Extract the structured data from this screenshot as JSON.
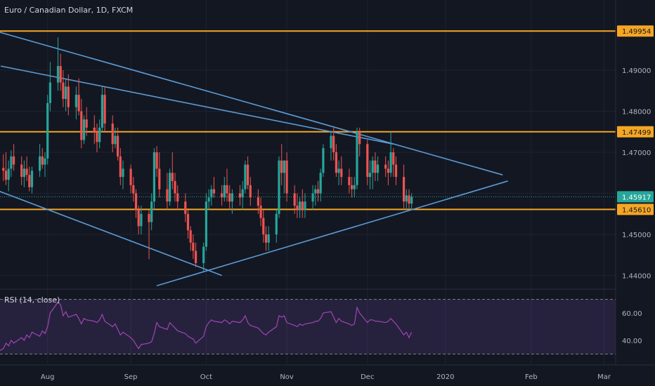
{
  "chart_data": {
    "type": "candlestick",
    "title": "Euro / Canadian Dollar, 1D, FXCM",
    "price_axis": {
      "ticks": [
        1.49,
        1.48,
        1.47,
        1.46,
        1.45,
        1.44
      ],
      "tick_labels": [
        "1.49000",
        "1.48000",
        "1.47000",
        "1.46000",
        "1.45000",
        "1.44000"
      ]
    },
    "time_axis": {
      "labels": [
        "Aug",
        "Sep",
        "Oct",
        "Nov",
        "Dec",
        "2020",
        "Feb",
        "Mar"
      ],
      "label_dates": [
        "2019-08-01",
        "2019-09-02",
        "2019-10-01",
        "2019-11-01",
        "2019-12-02",
        "2020-01-01",
        "2020-02-03",
        "2020-03-02"
      ]
    },
    "horizontal_levels": [
      {
        "price": 1.49954,
        "label": "1.49954"
      },
      {
        "price": 1.47499,
        "label": "1.47499"
      },
      {
        "price": 1.4561,
        "label": "1.45610"
      }
    ],
    "last_price": {
      "price": 1.45917,
      "label": "1.45917"
    },
    "trendlines": [
      {
        "from": {
          "date": "2019-07-01",
          "price": 1.5015
        },
        "to": {
          "date": "2020-01-23",
          "price": 1.4645
        }
      },
      {
        "from": {
          "date": "2019-07-14",
          "price": 1.491
        },
        "to": {
          "date": "2019-12-12",
          "price": 1.472
        }
      },
      {
        "from": {
          "date": "2019-07-01",
          "price": 1.4635
        },
        "to": {
          "date": "2019-10-07",
          "price": 1.44
        }
      },
      {
        "from": {
          "date": "2019-09-12",
          "price": 1.4375
        },
        "to": {
          "date": "2020-01-25",
          "price": 1.463
        }
      }
    ],
    "candles": [
      [
        1.4688,
        1.4715,
        1.464,
        1.4662
      ],
      [
        1.4662,
        1.4695,
        1.463,
        1.4655
      ],
      [
        1.4655,
        1.47,
        1.462,
        1.4633
      ],
      [
        1.4633,
        1.468,
        1.4605,
        1.466
      ],
      [
        1.466,
        1.4705,
        1.464,
        1.469
      ],
      [
        1.469,
        1.472,
        1.4655,
        1.467
      ],
      [
        1.467,
        1.469,
        1.462,
        1.464
      ],
      [
        1.464,
        1.468,
        1.4615,
        1.466
      ],
      [
        1.466,
        1.469,
        1.463,
        1.4645
      ],
      [
        1.4645,
        1.4665,
        1.4605,
        1.4615
      ],
      [
        1.4615,
        1.4665,
        1.46,
        1.4655
      ],
      [
        1.4655,
        1.472,
        1.464,
        1.469
      ],
      [
        1.469,
        1.471,
        1.466,
        1.467
      ],
      [
        1.467,
        1.47,
        1.464,
        1.4685
      ],
      [
        1.4685,
        1.484,
        1.467,
        1.482
      ],
      [
        1.482,
        1.492,
        1.48,
        1.487
      ],
      [
        1.487,
        1.498,
        1.485,
        1.491
      ],
      [
        1.491,
        1.494,
        1.485,
        1.487
      ],
      [
        1.487,
        1.49,
        1.481,
        1.483
      ],
      [
        1.483,
        1.488,
        1.48,
        1.486
      ],
      [
        1.486,
        1.489,
        1.479,
        1.481
      ],
      [
        1.481,
        1.486,
        1.478,
        1.484
      ],
      [
        1.484,
        1.488,
        1.479,
        1.48
      ],
      [
        1.48,
        1.483,
        1.471,
        1.473
      ],
      [
        1.473,
        1.479,
        1.472,
        1.478
      ],
      [
        1.478,
        1.481,
        1.474,
        1.476
      ],
      [
        1.476,
        1.479,
        1.472,
        1.475
      ],
      [
        1.475,
        1.477,
        1.47,
        1.4725
      ],
      [
        1.4725,
        1.478,
        1.471,
        1.476
      ],
      [
        1.476,
        1.486,
        1.475,
        1.484
      ],
      [
        1.484,
        1.486,
        1.475,
        1.477
      ],
      [
        1.477,
        1.479,
        1.47,
        1.472
      ],
      [
        1.472,
        1.476,
        1.471,
        1.474
      ],
      [
        1.474,
        1.476,
        1.468,
        1.469
      ],
      [
        1.469,
        1.471,
        1.462,
        1.464
      ],
      [
        1.464,
        1.468,
        1.461,
        1.466
      ],
      [
        1.466,
        1.467,
        1.46,
        1.462
      ],
      [
        1.462,
        1.464,
        1.458,
        1.46
      ],
      [
        1.46,
        1.461,
        1.454,
        1.456
      ],
      [
        1.456,
        1.457,
        1.45,
        1.452
      ],
      [
        1.452,
        1.457,
        1.45,
        1.455
      ],
      [
        1.455,
        1.456,
        1.444,
        1.453
      ],
      [
        1.453,
        1.46,
        1.451,
        1.458
      ],
      [
        1.458,
        1.471,
        1.456,
        1.47
      ],
      [
        1.47,
        1.4715,
        1.464,
        1.466
      ],
      [
        1.466,
        1.47,
        1.459,
        1.461
      ],
      [
        1.461,
        1.465,
        1.456,
        1.458
      ],
      [
        1.458,
        1.466,
        1.457,
        1.465
      ],
      [
        1.465,
        1.47,
        1.461,
        1.463
      ],
      [
        1.463,
        1.465,
        1.458,
        1.46
      ],
      [
        1.46,
        1.462,
        1.456,
        1.458
      ],
      [
        1.458,
        1.46,
        1.453,
        1.455
      ],
      [
        1.455,
        1.456,
        1.449,
        1.451
      ],
      [
        1.451,
        1.452,
        1.446,
        1.448
      ],
      [
        1.448,
        1.45,
        1.444,
        1.446
      ],
      [
        1.446,
        1.448,
        1.442,
        1.443
      ],
      [
        1.443,
        1.448,
        1.441,
        1.447
      ],
      [
        1.447,
        1.46,
        1.446,
        1.458
      ],
      [
        1.458,
        1.461,
        1.456,
        1.459
      ],
      [
        1.459,
        1.462,
        1.457,
        1.461
      ],
      [
        1.461,
        1.464,
        1.459,
        1.46
      ],
      [
        1.46,
        1.462,
        1.457,
        1.459
      ],
      [
        1.459,
        1.464,
        1.458,
        1.462
      ],
      [
        1.462,
        1.466,
        1.458,
        1.46
      ],
      [
        1.46,
        1.462,
        1.456,
        1.458
      ],
      [
        1.458,
        1.461,
        1.455,
        1.46
      ],
      [
        1.46,
        1.462,
        1.457,
        1.459
      ],
      [
        1.459,
        1.463,
        1.456,
        1.461
      ],
      [
        1.461,
        1.468,
        1.46,
        1.467
      ],
      [
        1.467,
        1.469,
        1.461,
        1.462
      ],
      [
        1.462,
        1.464,
        1.457,
        1.459
      ],
      [
        1.459,
        1.461,
        1.455,
        1.457
      ],
      [
        1.457,
        1.459,
        1.452,
        1.454
      ],
      [
        1.454,
        1.456,
        1.448,
        1.45
      ],
      [
        1.45,
        1.452,
        1.446,
        1.448
      ],
      [
        1.448,
        1.452,
        1.446,
        1.45
      ],
      [
        1.45,
        1.456,
        1.448,
        1.455
      ],
      [
        1.455,
        1.469,
        1.454,
        1.468
      ],
      [
        1.468,
        1.472,
        1.462,
        1.465
      ],
      [
        1.465,
        1.468,
        1.46,
        1.468
      ],
      [
        1.468,
        1.47,
        1.458,
        1.46
      ],
      [
        1.46,
        1.462,
        1.455,
        1.457
      ],
      [
        1.457,
        1.46,
        1.454,
        1.456
      ],
      [
        1.456,
        1.459,
        1.454,
        1.458
      ],
      [
        1.458,
        1.461,
        1.454,
        1.456
      ],
      [
        1.456,
        1.46,
        1.454,
        1.458
      ],
      [
        1.458,
        1.462,
        1.456,
        1.46
      ],
      [
        1.46,
        1.462,
        1.457,
        1.461
      ],
      [
        1.461,
        1.463,
        1.458,
        1.46
      ],
      [
        1.46,
        1.466,
        1.458,
        1.465
      ],
      [
        1.465,
        1.472,
        1.464,
        1.471
      ],
      [
        1.471,
        1.475,
        1.468,
        1.474
      ],
      [
        1.474,
        1.476,
        1.468,
        1.47
      ],
      [
        1.47,
        1.472,
        1.464,
        1.465
      ],
      [
        1.465,
        1.468,
        1.462,
        1.466
      ],
      [
        1.466,
        1.469,
        1.462,
        1.464
      ],
      [
        1.464,
        1.466,
        1.46,
        1.462
      ],
      [
        1.462,
        1.464,
        1.459,
        1.461
      ],
      [
        1.461,
        1.464,
        1.459,
        1.462
      ],
      [
        1.462,
        1.476,
        1.461,
        1.475
      ],
      [
        1.475,
        1.476,
        1.469,
        1.472
      ],
      [
        1.472,
        1.473,
        1.462,
        1.464
      ],
      [
        1.464,
        1.468,
        1.461,
        1.465
      ],
      [
        1.465,
        1.469,
        1.461,
        1.468
      ],
      [
        1.468,
        1.47,
        1.463,
        1.465
      ],
      [
        1.465,
        1.469,
        1.463,
        1.467
      ],
      [
        1.467,
        1.469,
        1.464,
        1.466
      ],
      [
        1.466,
        1.468,
        1.462,
        1.465
      ],
      [
        1.465,
        1.475,
        1.464,
        1.47
      ],
      [
        1.47,
        1.471,
        1.464,
        1.467
      ],
      [
        1.467,
        1.469,
        1.462,
        1.464
      ],
      [
        1.464,
        1.467,
        1.456,
        1.458
      ],
      [
        1.458,
        1.461,
        1.456,
        1.4595
      ],
      [
        1.4595,
        1.461,
        1.456,
        1.4575
      ],
      [
        1.4575,
        1.46,
        1.456,
        1.4592
      ]
    ],
    "rsi": {
      "label": "RSI (14, close)",
      "ticks": [
        60.0,
        40.0
      ],
      "tick_labels": [
        "60.00",
        "40.00"
      ],
      "bands": [
        70,
        30
      ],
      "values": [
        31,
        34,
        38,
        36,
        40,
        38,
        42,
        40,
        44,
        42,
        46,
        43,
        47,
        45,
        50,
        60,
        68,
        66,
        58,
        61,
        57,
        59,
        56,
        52,
        56,
        55,
        54,
        53,
        55,
        59,
        54,
        50,
        52,
        48,
        44,
        46,
        42,
        40,
        37,
        34,
        37,
        38,
        39,
        45,
        53,
        50,
        48,
        53,
        51,
        49,
        47,
        45,
        43,
        42,
        41,
        38,
        43,
        50,
        53,
        55,
        54,
        53,
        55,
        54,
        52,
        54,
        53,
        55,
        58,
        53,
        51,
        49,
        47,
        45,
        44,
        46,
        50,
        58,
        57,
        58,
        53,
        51,
        50,
        52,
        51,
        52,
        53,
        54,
        54,
        56,
        60,
        61,
        57,
        53,
        56,
        54,
        52,
        51,
        52,
        64,
        60,
        53,
        55,
        55,
        54,
        54,
        53,
        54,
        56,
        54,
        52,
        44,
        46,
        42,
        46
      ]
    }
  }
}
